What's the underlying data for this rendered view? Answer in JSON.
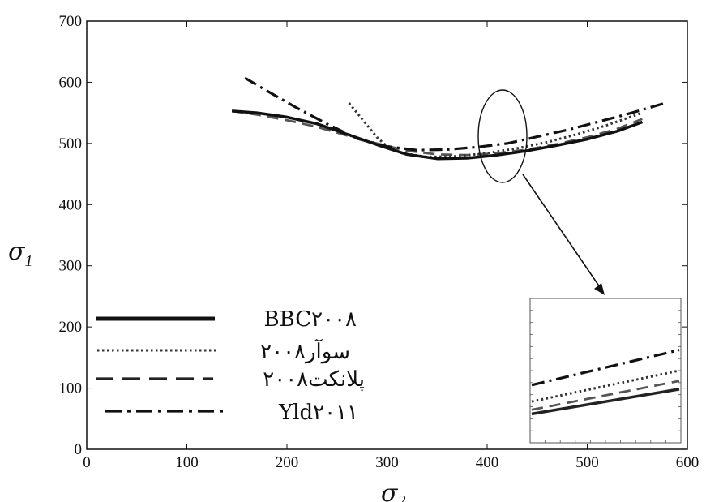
{
  "chart_data": {
    "type": "line",
    "x_ticks": [
      "0",
      "100",
      "200",
      "300",
      "400",
      "500",
      "600"
    ],
    "y_ticks": [
      "0",
      "100",
      "200",
      "300",
      "400",
      "500",
      "600",
      "700"
    ],
    "xlim": [
      0,
      600
    ],
    "ylim": [
      0,
      700
    ],
    "xlabel": {
      "symbol": "σ",
      "sub": "2"
    },
    "ylabel": {
      "symbol": "σ",
      "sub": "1"
    },
    "grid": false,
    "legend_position": "bottom-left",
    "series": [
      {
        "name": "BBC۲۰۰۸",
        "style": "solid",
        "color": "#111111",
        "x": [
          145,
          170,
          200,
          230,
          260,
          290,
          320,
          350,
          380,
          410,
          440,
          470,
          500,
          530,
          555
        ],
        "y": [
          553,
          550,
          543,
          532,
          515,
          498,
          482,
          475,
          476,
          481,
          488,
          497,
          507,
          520,
          535
        ]
      },
      {
        "name": "سوآر۲۰۰۸",
        "style": "dotted",
        "color": "#333333",
        "x": [
          262,
          275,
          290,
          300,
          315,
          340,
          370,
          400,
          430,
          460,
          490,
          520,
          555
        ],
        "y": [
          566,
          540,
          510,
          495,
          484,
          478,
          479,
          484,
          492,
          502,
          515,
          530,
          550
        ]
      },
      {
        "name": "پلانکت۲۰۰۸",
        "style": "dashed",
        "color": "#555555",
        "x": [
          145,
          170,
          200,
          230,
          260,
          290,
          320,
          350,
          380,
          410,
          440,
          470,
          500,
          530,
          555
        ],
        "y": [
          553,
          547,
          538,
          527,
          513,
          500,
          488,
          482,
          481,
          484,
          490,
          499,
          510,
          524,
          540
        ]
      },
      {
        "name": "Yld۲۰۱۱",
        "style": "dashdot",
        "color": "#111111",
        "x": [
          158,
          180,
          210,
          240,
          270,
          300,
          330,
          360,
          390,
          420,
          450,
          480,
          510,
          540,
          580
        ],
        "y": [
          607,
          586,
          558,
          532,
          508,
          495,
          489,
          490,
          494,
          500,
          511,
          522,
          535,
          548,
          567
        ]
      }
    ],
    "inset": {
      "zoom_xlim": [
        395,
        440
      ],
      "series_y_left": [
        498,
        490,
        486,
        484
      ],
      "series_y_right": [
        515,
        505,
        500,
        496
      ]
    }
  }
}
